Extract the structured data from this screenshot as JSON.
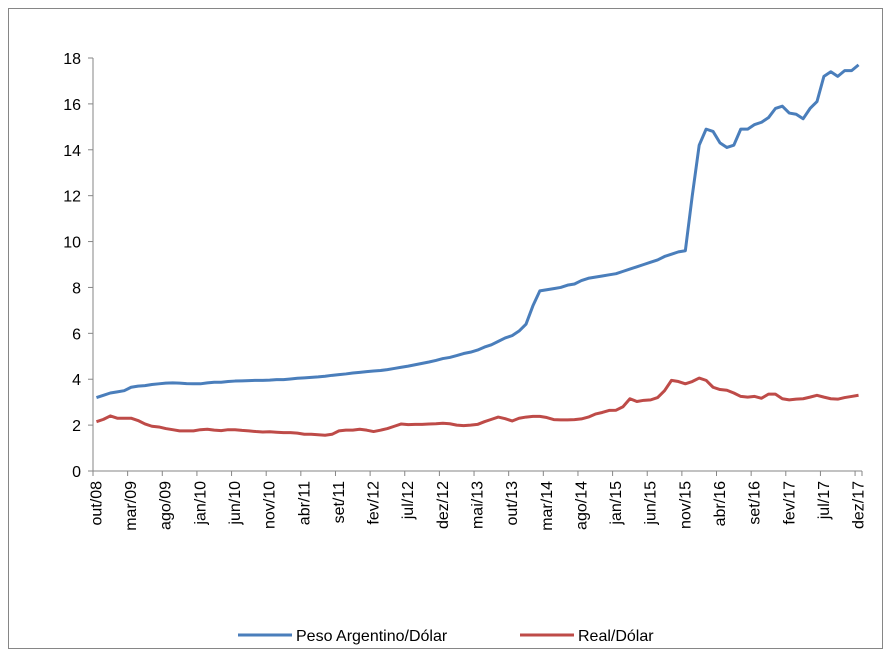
{
  "chart_data": {
    "type": "line",
    "categories": [
      "out/08",
      null,
      null,
      null,
      null,
      "mar/09",
      null,
      null,
      null,
      null,
      "ago/09",
      null,
      null,
      null,
      null,
      "jan/10",
      null,
      null,
      null,
      null,
      "jun/10",
      null,
      null,
      null,
      null,
      "nov/10",
      null,
      null,
      null,
      null,
      "abr/11",
      null,
      null,
      null,
      null,
      "set/11",
      null,
      null,
      null,
      null,
      "fev/12",
      null,
      null,
      null,
      null,
      "jul/12",
      null,
      null,
      null,
      null,
      "dez/12",
      null,
      null,
      null,
      null,
      "mai/13",
      null,
      null,
      null,
      null,
      "out/13",
      null,
      null,
      null,
      null,
      "mar/14",
      null,
      null,
      null,
      null,
      "ago/14",
      null,
      null,
      null,
      null,
      "jan/15",
      null,
      null,
      null,
      null,
      "jun/15",
      null,
      null,
      null,
      null,
      "nov/15",
      null,
      null,
      null,
      null,
      "abr/16",
      null,
      null,
      null,
      null,
      "set/16",
      null,
      null,
      null,
      null,
      "fev/17",
      null,
      null,
      null,
      null,
      "jul/17",
      null,
      null,
      null,
      null,
      "dez/17"
    ],
    "series": [
      {
        "name": "Peso Argentino/Dólar",
        "color": "#4a7ebb",
        "values": [
          3.2,
          3.3,
          3.4,
          3.45,
          3.5,
          3.65,
          3.7,
          3.72,
          3.77,
          3.8,
          3.83,
          3.84,
          3.83,
          3.81,
          3.8,
          3.8,
          3.84,
          3.87,
          3.87,
          3.9,
          3.92,
          3.93,
          3.94,
          3.95,
          3.95,
          3.96,
          3.98,
          3.98,
          4.01,
          4.04,
          4.06,
          4.08,
          4.1,
          4.13,
          4.17,
          4.2,
          4.23,
          4.27,
          4.3,
          4.33,
          4.36,
          4.38,
          4.42,
          4.47,
          4.52,
          4.57,
          4.63,
          4.69,
          4.75,
          4.82,
          4.9,
          4.95,
          5.03,
          5.12,
          5.18,
          5.27,
          5.4,
          5.5,
          5.65,
          5.8,
          5.9,
          6.1,
          6.4,
          7.2,
          7.85,
          7.9,
          7.95,
          8.0,
          8.1,
          8.15,
          8.3,
          8.4,
          8.45,
          8.5,
          8.55,
          8.6,
          8.7,
          8.8,
          8.9,
          9.0,
          9.1,
          9.2,
          9.35,
          9.45,
          9.55,
          9.6,
          12.0,
          14.2,
          14.9,
          14.8,
          14.3,
          14.1,
          14.2,
          14.9,
          14.9,
          15.1,
          15.2,
          15.4,
          15.8,
          15.9,
          15.6,
          15.55,
          15.35,
          15.8,
          16.1,
          17.2,
          17.4,
          17.2,
          17.45,
          17.45,
          17.7
        ]
      },
      {
        "name": "Real/Dólar",
        "color": "#be4b48",
        "values": [
          2.15,
          2.25,
          2.4,
          2.3,
          2.3,
          2.3,
          2.2,
          2.05,
          1.95,
          1.92,
          1.85,
          1.8,
          1.75,
          1.75,
          1.75,
          1.8,
          1.82,
          1.78,
          1.76,
          1.8,
          1.8,
          1.77,
          1.75,
          1.72,
          1.7,
          1.71,
          1.69,
          1.67,
          1.67,
          1.65,
          1.6,
          1.6,
          1.58,
          1.56,
          1.6,
          1.75,
          1.78,
          1.78,
          1.82,
          1.78,
          1.72,
          1.78,
          1.85,
          1.95,
          2.05,
          2.02,
          2.03,
          2.03,
          2.05,
          2.06,
          2.08,
          2.06,
          2.0,
          1.98,
          2.0,
          2.03,
          2.15,
          2.25,
          2.35,
          2.28,
          2.18,
          2.3,
          2.35,
          2.38,
          2.38,
          2.33,
          2.24,
          2.23,
          2.23,
          2.24,
          2.27,
          2.35,
          2.48,
          2.55,
          2.64,
          2.65,
          2.8,
          3.15,
          3.03,
          3.08,
          3.1,
          3.2,
          3.5,
          3.95,
          3.9,
          3.8,
          3.9,
          4.05,
          3.95,
          3.65,
          3.55,
          3.52,
          3.4,
          3.25,
          3.22,
          3.25,
          3.17,
          3.35,
          3.35,
          3.15,
          3.1,
          3.13,
          3.15,
          3.22,
          3.3,
          3.22,
          3.15,
          3.13,
          3.2,
          3.25,
          3.3
        ]
      }
    ],
    "ylim": [
      0,
      18
    ],
    "yticks": [
      0,
      2,
      4,
      6,
      8,
      10,
      12,
      14,
      16,
      18
    ],
    "grid": false,
    "legend": "bottom"
  }
}
